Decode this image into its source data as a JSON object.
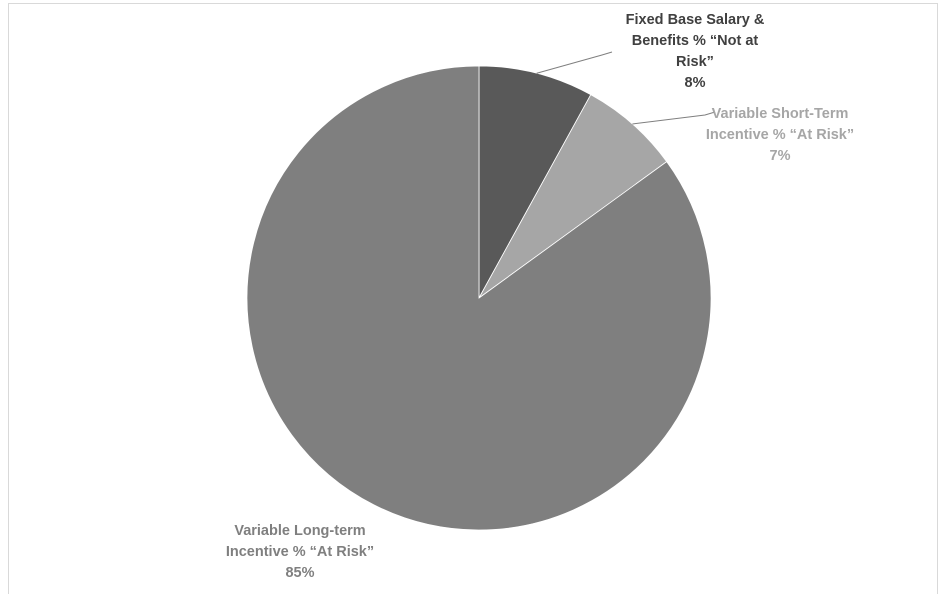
{
  "chart_data": {
    "type": "pie",
    "start_angle_deg": 0,
    "direction": "clockwise",
    "slices": [
      {
        "label_lines": [
          "Fixed Base Salary &",
          "Benefits % “Not at",
          "Risk”"
        ],
        "value": 8,
        "value_label": "8%",
        "color": "#595959",
        "label_color": "#404040"
      },
      {
        "label_lines": [
          "Variable Short-Term",
          "Incentive % “At Risk”"
        ],
        "value": 7,
        "value_label": "7%",
        "color": "#a6a6a6",
        "label_color": "#a6a6a6"
      },
      {
        "label_lines": [
          "Variable Long-term",
          "Incentive % “At Risk”"
        ],
        "value": 85,
        "value_label": "85%",
        "color": "#7f7f7f",
        "label_color": "#7f7f7f"
      }
    ],
    "leader_line_color": "#7f7f7f"
  }
}
